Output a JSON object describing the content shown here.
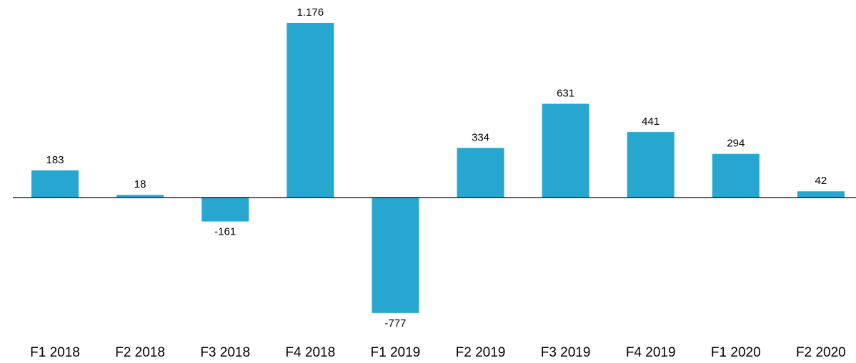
{
  "chart_data": {
    "type": "bar",
    "categories": [
      "F1 2018",
      "F2 2018",
      "F3 2018",
      "F4 2018",
      "F1 2019",
      "F2 2019",
      "F3 2019",
      "F4 2019",
      "F1 2020",
      "F2 2020"
    ],
    "values": [
      183,
      18,
      -161,
      1176,
      -777,
      334,
      631,
      441,
      294,
      42
    ],
    "value_labels": [
      "183",
      "18",
      "-161",
      "1.176",
      "-777",
      "334",
      "631",
      "441",
      "294",
      "42"
    ],
    "color": "#27a6cf"
  }
}
